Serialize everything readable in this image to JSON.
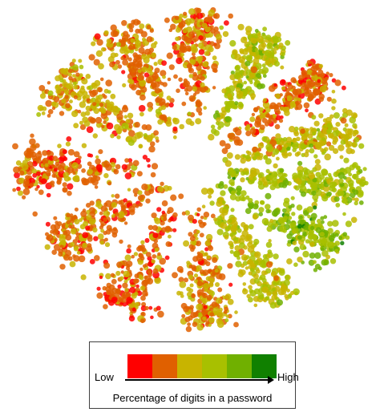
{
  "chart_data": {
    "type": "scatter",
    "title": "",
    "xlabel": "",
    "ylabel": "",
    "grid": false,
    "legend": {
      "placement": "bottom-center",
      "low_label": "Low",
      "high_label": "High",
      "caption": "Percentage of digits in a password",
      "color_scale": [
        "#ff0000",
        "#e06000",
        "#c8b400",
        "#a8c000",
        "#70b000",
        "#108000"
      ]
    },
    "clusters": [
      {
        "angle_deg": -88,
        "r0": 0.25,
        "r1": 0.98,
        "span_deg": 28,
        "digit_level": 0.25
      },
      {
        "angle_deg": -62,
        "r0": 0.2,
        "r1": 0.95,
        "span_deg": 22,
        "digit_level": 0.55
      },
      {
        "angle_deg": -38,
        "r0": 0.18,
        "r1": 0.97,
        "span_deg": 22,
        "digit_level": 0.2
      },
      {
        "angle_deg": -15,
        "r0": 0.15,
        "r1": 0.96,
        "span_deg": 22,
        "digit_level": 0.45
      },
      {
        "angle_deg": 8,
        "r0": 0.12,
        "r1": 0.98,
        "span_deg": 22,
        "digit_level": 0.6
      },
      {
        "angle_deg": 32,
        "r0": 0.15,
        "r1": 0.97,
        "span_deg": 24,
        "digit_level": 0.7
      },
      {
        "angle_deg": 58,
        "r0": 0.12,
        "r1": 0.97,
        "span_deg": 26,
        "digit_level": 0.5
      },
      {
        "angle_deg": 85,
        "r0": 0.15,
        "r1": 0.99,
        "span_deg": 26,
        "digit_level": 0.3
      },
      {
        "angle_deg": 115,
        "r0": 0.18,
        "r1": 0.99,
        "span_deg": 30,
        "digit_level": 0.2
      },
      {
        "angle_deg": 148,
        "r0": 0.15,
        "r1": 0.95,
        "span_deg": 30,
        "digit_level": 0.25
      },
      {
        "angle_deg": 180,
        "r0": 0.2,
        "r1": 1.0,
        "span_deg": 28,
        "digit_level": 0.2
      },
      {
        "angle_deg": -145,
        "r0": 0.2,
        "r1": 0.96,
        "span_deg": 30,
        "digit_level": 0.35
      },
      {
        "angle_deg": -115,
        "r0": 0.18,
        "r1": 0.97,
        "span_deg": 26,
        "digit_level": 0.3
      }
    ]
  }
}
